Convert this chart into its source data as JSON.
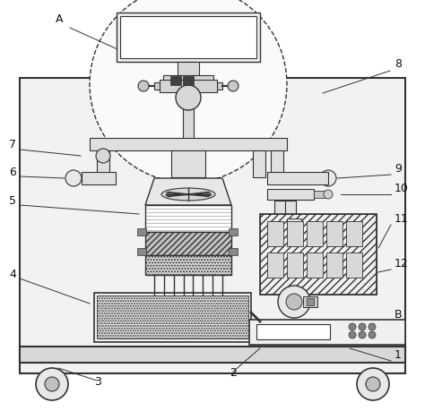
{
  "bg_color": "#ffffff",
  "line_color": "#333333",
  "figsize": [
    4.74,
    4.6
  ],
  "dpi": 100
}
